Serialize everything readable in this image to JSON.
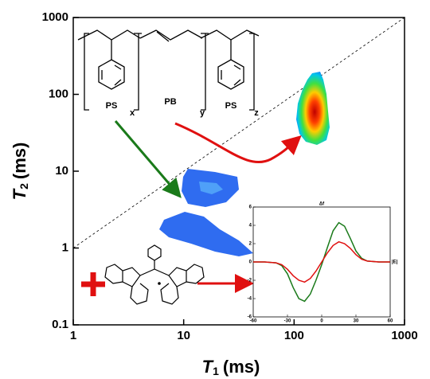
{
  "chart_data": [
    {
      "type": "scatter",
      "log_x": true,
      "log_y": true,
      "x_label": {
        "symbol": "T",
        "sub": "1",
        "unit": "(ms)"
      },
      "y_label": {
        "symbol": "T",
        "sub": "2",
        "unit": "(ms)"
      },
      "xlim": [
        1,
        1000
      ],
      "ylim": [
        0.1,
        1000
      ],
      "xticks": [
        1,
        10,
        100,
        1000
      ],
      "yticks": [
        0.1,
        1,
        10,
        100,
        1000
      ],
      "reference_line": {
        "x": [
          1,
          1000
        ],
        "y": [
          1,
          1000
        ]
      },
      "structure_labels": [
        "PS",
        "x",
        "PB",
        "y",
        "PS",
        "z"
      ]
    },
    {
      "type": "line",
      "title": "Δf",
      "y_label": "|E|",
      "xlim": [
        -60,
        60
      ],
      "ylim": [
        -6,
        6
      ],
      "xticks": [
        -60,
        -30,
        0,
        30,
        60
      ],
      "yticks": [
        -6,
        -4,
        -2,
        0,
        2,
        4,
        6
      ],
      "x": [
        -60,
        -50,
        -40,
        -35,
        -30,
        -25,
        -20,
        -15,
        -10,
        -5,
        0,
        5,
        10,
        15,
        20,
        25,
        30,
        35,
        40,
        50,
        60
      ],
      "series": [
        {
          "color": "#1a7a1a",
          "values": [
            0,
            0,
            -0.1,
            -0.4,
            -1.3,
            -2.8,
            -4.0,
            -4.3,
            -3.5,
            -2.0,
            -0.3,
            1.6,
            3.4,
            4.3,
            3.9,
            2.6,
            1.2,
            0.4,
            0.1,
            0,
            0
          ]
        },
        {
          "color": "#e01010",
          "values": [
            0,
            0,
            -0.1,
            -0.3,
            -0.8,
            -1.5,
            -2.0,
            -2.2,
            -1.8,
            -1.0,
            0,
            1.0,
            1.8,
            2.2,
            2.0,
            1.5,
            0.8,
            0.3,
            0.1,
            0,
            0
          ]
        }
      ]
    }
  ]
}
